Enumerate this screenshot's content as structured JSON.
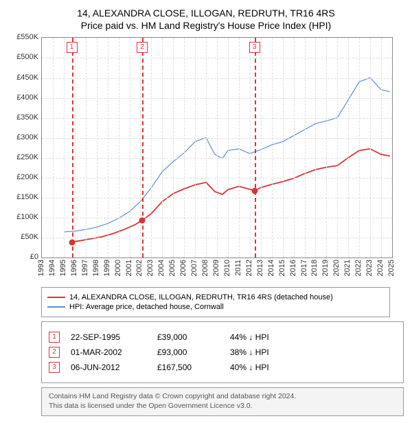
{
  "title_line1": "14, ALEXANDRA CLOSE, ILLOGAN, REDRUTH, TR16 4RS",
  "title_line2": "Price paid vs. HM Land Registry's House Price Index (HPI)",
  "chart": {
    "type": "line",
    "x_min": 1993,
    "x_max": 2025,
    "y_min": 0,
    "y_max": 550000,
    "y_prefix": "£",
    "y_suffix": "K",
    "y_div": 1000,
    "y_ticks": [
      0,
      50000,
      100000,
      150000,
      200000,
      250000,
      300000,
      350000,
      400000,
      450000,
      500000,
      550000
    ],
    "x_ticks": [
      1993,
      1994,
      1995,
      1996,
      1997,
      1998,
      1999,
      2000,
      2001,
      2002,
      2003,
      2004,
      2005,
      2006,
      2007,
      2008,
      2009,
      2010,
      2011,
      2012,
      2013,
      2014,
      2015,
      2016,
      2017,
      2018,
      2019,
      2020,
      2021,
      2022,
      2023,
      2024,
      2025
    ],
    "grid_color": "#dddddd",
    "border_color": "#888888",
    "series": [
      {
        "name": "property",
        "label": "14, ALEXANDRA CLOSE, ILLOGAN, REDRUTH, TR16 4RS (detached house)",
        "color": "#d93333",
        "width": 1.8,
        "data": [
          [
            1995.73,
            39000
          ],
          [
            1996.5,
            42000
          ],
          [
            1997.5,
            47000
          ],
          [
            1998.5,
            52000
          ],
          [
            1999.5,
            60000
          ],
          [
            2000.5,
            70000
          ],
          [
            2001.5,
            82000
          ],
          [
            2002.17,
            93000
          ],
          [
            2003,
            110000
          ],
          [
            2004,
            140000
          ],
          [
            2005,
            160000
          ],
          [
            2006,
            172000
          ],
          [
            2007,
            182000
          ],
          [
            2008,
            188000
          ],
          [
            2008.8,
            165000
          ],
          [
            2009.5,
            158000
          ],
          [
            2010,
            170000
          ],
          [
            2011,
            178000
          ],
          [
            2012.43,
            167500
          ],
          [
            2013,
            175000
          ],
          [
            2014,
            183000
          ],
          [
            2015,
            190000
          ],
          [
            2016,
            198000
          ],
          [
            2017,
            210000
          ],
          [
            2018,
            220000
          ],
          [
            2019,
            226000
          ],
          [
            2020,
            230000
          ],
          [
            2021,
            250000
          ],
          [
            2022,
            268000
          ],
          [
            2023,
            272000
          ],
          [
            2024,
            258000
          ],
          [
            2024.8,
            254000
          ]
        ]
      },
      {
        "name": "hpi",
        "label": "HPI: Average price, detached house, Cornwall",
        "color": "#5b8fd6",
        "width": 1.2,
        "data": [
          [
            1995,
            64000
          ],
          [
            1996,
            66000
          ],
          [
            1997,
            70000
          ],
          [
            1998,
            76000
          ],
          [
            1999,
            85000
          ],
          [
            2000,
            98000
          ],
          [
            2001,
            115000
          ],
          [
            2002,
            140000
          ],
          [
            2003,
            175000
          ],
          [
            2004,
            215000
          ],
          [
            2005,
            240000
          ],
          [
            2006,
            262000
          ],
          [
            2007,
            290000
          ],
          [
            2008,
            300000
          ],
          [
            2008.8,
            258000
          ],
          [
            2009.5,
            248000
          ],
          [
            2010,
            268000
          ],
          [
            2011,
            272000
          ],
          [
            2012,
            260000
          ],
          [
            2013,
            270000
          ],
          [
            2014,
            282000
          ],
          [
            2015,
            290000
          ],
          [
            2016,
            305000
          ],
          [
            2017,
            320000
          ],
          [
            2018,
            335000
          ],
          [
            2019,
            342000
          ],
          [
            2020,
            350000
          ],
          [
            2021,
            395000
          ],
          [
            2022,
            440000
          ],
          [
            2023,
            450000
          ],
          [
            2024,
            420000
          ],
          [
            2024.8,
            415000
          ]
        ]
      }
    ],
    "markers": [
      {
        "num": "1",
        "year": 1995.73,
        "value": 39000
      },
      {
        "num": "2",
        "year": 2002.17,
        "value": 93000
      },
      {
        "num": "3",
        "year": 2012.43,
        "value": 167500
      }
    ]
  },
  "legend": {
    "rows": [
      {
        "color": "#d93333",
        "label": "14, ALEXANDRA CLOSE, ILLOGAN, REDRUTH, TR16 4RS (detached house)"
      },
      {
        "color": "#5b8fd6",
        "label": "HPI: Average price, detached house, Cornwall"
      }
    ]
  },
  "sales": [
    {
      "num": "1",
      "date": "22-SEP-1995",
      "price": "£39,000",
      "diff": "44% ↓ HPI"
    },
    {
      "num": "2",
      "date": "01-MAR-2002",
      "price": "£93,000",
      "diff": "38% ↓ HPI"
    },
    {
      "num": "3",
      "date": "06-JUN-2012",
      "price": "£167,500",
      "diff": "40% ↓ HPI"
    }
  ],
  "footer_line1": "Contains HM Land Registry data © Crown copyright and database right 2024.",
  "footer_line2": "This data is licensed under the Open Government Licence v3.0."
}
